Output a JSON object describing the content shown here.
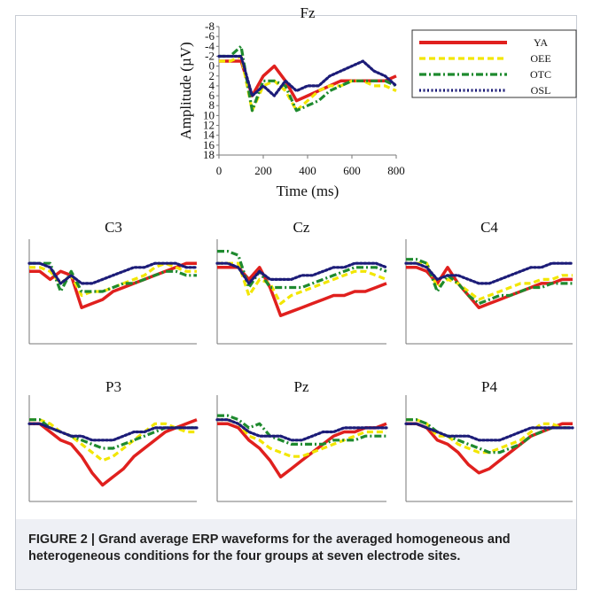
{
  "chart_data": [
    {
      "type": "line",
      "title": "Fz",
      "x_label": "Time (ms)",
      "y_label": "Amplitude (µV)",
      "x": [
        0,
        50,
        100,
        150,
        200,
        250,
        300,
        350,
        400,
        450,
        500,
        550,
        600,
        650,
        700,
        750,
        800
      ],
      "xlim": [
        0,
        800
      ],
      "xticks": [
        0,
        200,
        400,
        600,
        800
      ],
      "ylim": [
        -8,
        18
      ],
      "yticks": [
        -8,
        -6,
        -4,
        -2,
        0,
        2,
        4,
        6,
        8,
        10,
        12,
        14,
        16,
        18
      ],
      "y_inverted": true,
      "series": [
        {
          "name": "YA",
          "color": "#e0201e",
          "style": "solid",
          "values": [
            -1,
            -1,
            -1,
            6,
            2,
            0,
            3,
            7,
            6,
            5,
            4,
            3,
            3,
            3,
            3,
            3,
            2
          ]
        },
        {
          "name": "OEE",
          "color": "#f2e600",
          "style": "dashed",
          "values": [
            -1,
            -1,
            -2,
            9,
            4,
            3,
            5,
            9,
            7,
            5,
            4,
            4,
            3,
            3,
            4,
            4,
            5
          ]
        },
        {
          "name": "OTC",
          "color": "#1e8a2e",
          "style": "dashdot",
          "values": [
            -2,
            -2,
            -4,
            9,
            3,
            3,
            4,
            9,
            8,
            7,
            5,
            4,
            3,
            3,
            3,
            3,
            4
          ]
        },
        {
          "name": "OSL",
          "color": "#1c1c78",
          "style": "dotted",
          "values": [
            -2,
            -2,
            -2,
            6,
            4,
            6,
            3,
            5,
            4,
            4,
            2,
            1,
            0,
            -1,
            1,
            2,
            4
          ]
        }
      ]
    },
    {
      "type": "line",
      "title": "C3",
      "x": [
        0,
        50,
        100,
        150,
        200,
        250,
        300,
        350,
        400,
        450,
        500,
        550,
        600,
        650,
        700,
        750,
        800
      ],
      "xlim": [
        0,
        800
      ],
      "ylim": [
        -8,
        18
      ],
      "y_inverted": true,
      "series": [
        {
          "color": "#e0201e",
          "style": "solid",
          "values": [
            0,
            0,
            2,
            0,
            1,
            9,
            8,
            7,
            5,
            4,
            3,
            2,
            1,
            0,
            -1,
            -2,
            -2
          ]
        },
        {
          "color": "#f2e600",
          "style": "dashed",
          "values": [
            -1,
            -1,
            0,
            3,
            1,
            6,
            5,
            5,
            4,
            3,
            2,
            1,
            -1,
            -2,
            -1,
            0,
            0
          ]
        },
        {
          "color": "#1e8a2e",
          "style": "dashdot",
          "values": [
            -2,
            -2,
            -2,
            5,
            0,
            5,
            5,
            5,
            4,
            3,
            3,
            2,
            1,
            0,
            0,
            1,
            1
          ]
        },
        {
          "color": "#1c1c78",
          "style": "dotted",
          "values": [
            -2,
            -2,
            -1,
            3,
            1,
            3,
            3,
            2,
            1,
            0,
            -1,
            -1,
            -2,
            -2,
            -2,
            -1,
            -1
          ]
        }
      ]
    },
    {
      "type": "line",
      "title": "Cz",
      "x": [
        0,
        50,
        100,
        150,
        200,
        250,
        300,
        350,
        400,
        450,
        500,
        550,
        600,
        650,
        700,
        750,
        800
      ],
      "xlim": [
        0,
        800
      ],
      "ylim": [
        -8,
        18
      ],
      "y_inverted": true,
      "series": [
        {
          "color": "#e0201e",
          "style": "solid",
          "values": [
            -1,
            -1,
            -1,
            2,
            -1,
            4,
            11,
            10,
            9,
            8,
            7,
            6,
            6,
            5,
            5,
            4,
            3
          ]
        },
        {
          "color": "#f2e600",
          "style": "dashed",
          "values": [
            -2,
            -2,
            -2,
            6,
            2,
            3,
            8,
            6,
            5,
            4,
            3,
            2,
            1,
            0,
            0,
            1,
            2
          ]
        },
        {
          "color": "#1e8a2e",
          "style": "dashdot",
          "values": [
            -5,
            -5,
            -4,
            4,
            0,
            4,
            4,
            4,
            4,
            3,
            2,
            1,
            0,
            -1,
            -1,
            -1,
            0
          ]
        },
        {
          "color": "#1c1c78",
          "style": "dotted",
          "values": [
            -2,
            -2,
            -1,
            3,
            0,
            2,
            2,
            2,
            1,
            1,
            0,
            -1,
            -1,
            -2,
            -2,
            -2,
            -1
          ]
        }
      ]
    },
    {
      "type": "line",
      "title": "C4",
      "x": [
        0,
        50,
        100,
        150,
        200,
        250,
        300,
        350,
        400,
        450,
        500,
        550,
        600,
        650,
        700,
        750,
        800
      ],
      "xlim": [
        0,
        800
      ],
      "ylim": [
        -8,
        18
      ],
      "y_inverted": true,
      "series": [
        {
          "color": "#e0201e",
          "style": "solid",
          "values": [
            -1,
            -1,
            0,
            3,
            -1,
            3,
            6,
            9,
            8,
            7,
            6,
            5,
            4,
            3,
            3,
            2,
            2
          ]
        },
        {
          "color": "#f2e600",
          "style": "dashed",
          "values": [
            -2,
            -2,
            -2,
            4,
            2,
            3,
            5,
            7,
            6,
            5,
            4,
            3,
            3,
            2,
            2,
            1,
            1
          ]
        },
        {
          "color": "#1e8a2e",
          "style": "dashdot",
          "values": [
            -3,
            -3,
            -2,
            5,
            1,
            3,
            6,
            8,
            7,
            6,
            6,
            5,
            4,
            4,
            3,
            3,
            3
          ]
        },
        {
          "color": "#1c1c78",
          "style": "dotted",
          "values": [
            -2,
            -2,
            -1,
            2,
            1,
            1,
            2,
            3,
            3,
            2,
            1,
            0,
            -1,
            -1,
            -2,
            -2,
            -2
          ]
        }
      ]
    },
    {
      "type": "line",
      "title": "P3",
      "x": [
        0,
        50,
        100,
        150,
        200,
        250,
        300,
        350,
        400,
        450,
        500,
        550,
        600,
        650,
        700,
        750,
        800
      ],
      "xlim": [
        0,
        800
      ],
      "ylim": [
        -8,
        18
      ],
      "y_inverted": true,
      "series": [
        {
          "color": "#e0201e",
          "style": "solid",
          "values": [
            -1,
            -1,
            1,
            3,
            4,
            7,
            11,
            14,
            12,
            10,
            7,
            5,
            3,
            1,
            0,
            -1,
            -2
          ]
        },
        {
          "color": "#f2e600",
          "style": "dashed",
          "values": [
            -2,
            -2,
            -1,
            1,
            2,
            4,
            6,
            8,
            7,
            5,
            3,
            1,
            -1,
            -1,
            0,
            1,
            1
          ]
        },
        {
          "color": "#1e8a2e",
          "style": "dashdot",
          "values": [
            -2,
            -2,
            0,
            1,
            2,
            3,
            4,
            5,
            5,
            4,
            3,
            2,
            1,
            0,
            0,
            0,
            0
          ]
        },
        {
          "color": "#1c1c78",
          "style": "dotted",
          "values": [
            -1,
            -1,
            0,
            1,
            2,
            2,
            3,
            3,
            3,
            2,
            1,
            1,
            0,
            0,
            0,
            0,
            0
          ]
        }
      ]
    },
    {
      "type": "line",
      "title": "Pz",
      "x": [
        0,
        50,
        100,
        150,
        200,
        250,
        300,
        350,
        400,
        450,
        500,
        550,
        600,
        650,
        700,
        750,
        800
      ],
      "xlim": [
        0,
        800
      ],
      "ylim": [
        -8,
        18
      ],
      "y_inverted": true,
      "series": [
        {
          "color": "#e0201e",
          "style": "solid",
          "values": [
            -1,
            -1,
            0,
            3,
            5,
            8,
            12,
            10,
            8,
            6,
            4,
            2,
            1,
            1,
            0,
            0,
            -1
          ]
        },
        {
          "color": "#f2e600",
          "style": "dashed",
          "values": [
            -2,
            -2,
            -1,
            2,
            3,
            5,
            6,
            7,
            7,
            6,
            5,
            4,
            3,
            2,
            1,
            1,
            1
          ]
        },
        {
          "color": "#1e8a2e",
          "style": "dashdot",
          "values": [
            -3,
            -3,
            -2,
            0,
            -1,
            2,
            3,
            4,
            4,
            4,
            4,
            3,
            3,
            3,
            2,
            2,
            2
          ]
        },
        {
          "color": "#1c1c78",
          "style": "dotted",
          "values": [
            -2,
            -2,
            -1,
            1,
            2,
            2,
            2,
            3,
            3,
            2,
            1,
            1,
            0,
            0,
            0,
            0,
            0
          ]
        }
      ]
    },
    {
      "type": "line",
      "title": "P4",
      "x": [
        0,
        50,
        100,
        150,
        200,
        250,
        300,
        350,
        400,
        450,
        500,
        550,
        600,
        650,
        700,
        750,
        800
      ],
      "xlim": [
        0,
        800
      ],
      "ylim": [
        -8,
        18
      ],
      "y_inverted": true,
      "series": [
        {
          "color": "#e0201e",
          "style": "solid",
          "values": [
            -1,
            -1,
            0,
            3,
            4,
            6,
            9,
            11,
            10,
            8,
            6,
            4,
            2,
            1,
            0,
            -1,
            -1
          ]
        },
        {
          "color": "#f2e600",
          "style": "dashed",
          "values": [
            -2,
            -2,
            -1,
            2,
            2,
            4,
            5,
            6,
            6,
            5,
            4,
            3,
            1,
            -1,
            -1,
            0,
            0
          ]
        },
        {
          "color": "#1e8a2e",
          "style": "dashdot",
          "values": [
            -2,
            -2,
            -1,
            1,
            2,
            3,
            4,
            5,
            6,
            6,
            5,
            4,
            2,
            1,
            0,
            0,
            0
          ]
        },
        {
          "color": "#1c1c78",
          "style": "dotted",
          "values": [
            -1,
            -1,
            0,
            1,
            2,
            2,
            2,
            3,
            3,
            3,
            2,
            1,
            0,
            0,
            0,
            0,
            0
          ]
        }
      ]
    }
  ],
  "caption": "FIGURE 2 | Grand average ERP waveforms for the averaged homogeneous and heterogeneous conditions for the four groups at seven electrode sites."
}
